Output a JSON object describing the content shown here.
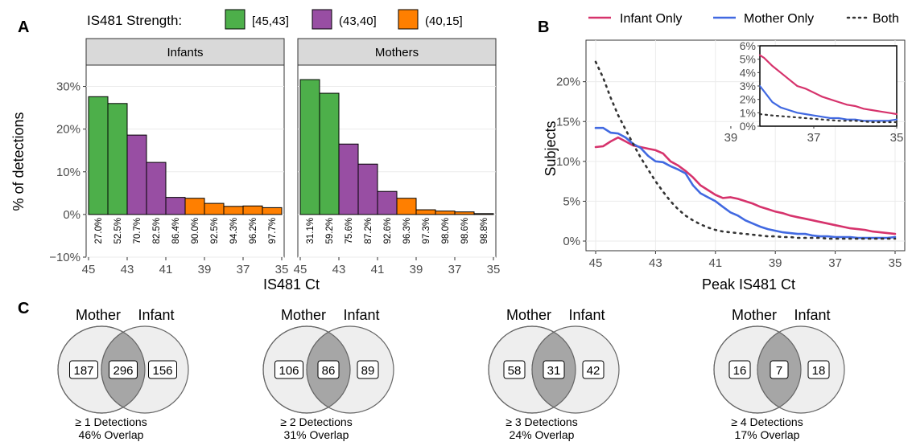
{
  "panel_labels": {
    "a": "A",
    "b": "B",
    "c": "C"
  },
  "colors": {
    "strength_high": "#4daf4a",
    "strength_mid": "#984ea3",
    "strength_low": "#ff7f00",
    "infant_only": "#d6336c",
    "mother_only": "#4169e1",
    "both": "#333333",
    "strip_fill": "#d9d9d9",
    "venn_outer": "#eeeeee",
    "venn_overlap": "#a6a6a6"
  },
  "chart_data": [
    {
      "type": "bar",
      "panel": "A",
      "legend_title": "IS481 Strength:",
      "legend_entries": [
        "[45,43]",
        "(43,40]",
        "(40,15]"
      ],
      "xlabel": "IS481 Ct",
      "ylabel": "% of detections",
      "xlim": [
        45,
        35
      ],
      "ylim": [
        -0.1,
        0.35
      ],
      "xticks": [
        "45",
        "43",
        "41",
        "39",
        "37",
        "35"
      ],
      "yticks": [
        "30%",
        "20%",
        "10%",
        "0%",
        "−10%"
      ],
      "ytick_values": [
        0.3,
        0.2,
        0.1,
        0.0,
        -0.1
      ],
      "facets": [
        {
          "title": "Infants",
          "bins": [
            {
              "x_left": 45,
              "x_right": 44,
              "value": 0.276,
              "group": 0,
              "cum_label": "27.0%"
            },
            {
              "x_left": 44,
              "x_right": 43,
              "value": 0.26,
              "group": 0,
              "cum_label": "52.5%"
            },
            {
              "x_left": 43,
              "x_right": 42,
              "value": 0.186,
              "group": 1,
              "cum_label": "70.7%"
            },
            {
              "x_left": 42,
              "x_right": 41,
              "value": 0.122,
              "group": 1,
              "cum_label": "82.5%"
            },
            {
              "x_left": 41,
              "x_right": 40,
              "value": 0.04,
              "group": 1,
              "cum_label": "86.4%"
            },
            {
              "x_left": 40,
              "x_right": 39,
              "value": 0.038,
              "group": 2,
              "cum_label": "90.0%"
            },
            {
              "x_left": 39,
              "x_right": 38,
              "value": 0.026,
              "group": 2,
              "cum_label": "92.5%"
            },
            {
              "x_left": 38,
              "x_right": 37,
              "value": 0.019,
              "group": 2,
              "cum_label": "94.3%"
            },
            {
              "x_left": 37,
              "x_right": 36,
              "value": 0.02,
              "group": 2,
              "cum_label": "96.2%"
            },
            {
              "x_left": 36,
              "x_right": 35,
              "value": 0.016,
              "group": 2,
              "cum_label": "97.7%"
            }
          ]
        },
        {
          "title": "Mothers",
          "bins": [
            {
              "x_left": 45,
              "x_right": 44,
              "value": 0.316,
              "group": 0,
              "cum_label": "31.1%"
            },
            {
              "x_left": 44,
              "x_right": 43,
              "value": 0.284,
              "group": 0,
              "cum_label": "59.2%"
            },
            {
              "x_left": 43,
              "x_right": 42,
              "value": 0.165,
              "group": 1,
              "cum_label": "75.6%"
            },
            {
              "x_left": 42,
              "x_right": 41,
              "value": 0.118,
              "group": 1,
              "cum_label": "87.2%"
            },
            {
              "x_left": 41,
              "x_right": 40,
              "value": 0.054,
              "group": 1,
              "cum_label": "92.6%"
            },
            {
              "x_left": 40,
              "x_right": 39,
              "value": 0.038,
              "group": 2,
              "cum_label": "96.3%"
            },
            {
              "x_left": 39,
              "x_right": 38,
              "value": 0.011,
              "group": 2,
              "cum_label": "97.3%"
            },
            {
              "x_left": 38,
              "x_right": 37,
              "value": 0.008,
              "group": 2,
              "cum_label": "98.0%"
            },
            {
              "x_left": 37,
              "x_right": 36,
              "value": 0.006,
              "group": 2,
              "cum_label": "98.6%"
            },
            {
              "x_left": 36,
              "x_right": 35,
              "value": 0.002,
              "group": 2,
              "cum_label": "98.8%"
            }
          ]
        }
      ]
    },
    {
      "type": "line",
      "panel": "B",
      "xlabel": "Peak IS481 Ct",
      "ylabel": "Subjects",
      "xlim": [
        45,
        35
      ],
      "ylim": [
        0,
        0.24
      ],
      "xticks": [
        "45",
        "43",
        "41",
        "39",
        "37",
        "35"
      ],
      "yticks": [
        "20%",
        "15%",
        "10%",
        "5%",
        "0%"
      ],
      "ytick_values": [
        0.2,
        0.15,
        0.1,
        0.05,
        0.0
      ],
      "series": [
        {
          "name": "Infant Only",
          "dash": "solid",
          "points": [
            [
              45,
              0.118
            ],
            [
              44.75,
              0.119
            ],
            [
              44.5,
              0.125
            ],
            [
              44.25,
              0.13
            ],
            [
              44,
              0.125
            ],
            [
              43.75,
              0.12
            ],
            [
              43.5,
              0.118
            ],
            [
              43.25,
              0.116
            ],
            [
              43,
              0.114
            ],
            [
              42.75,
              0.11
            ],
            [
              42.5,
              0.1
            ],
            [
              42.25,
              0.095
            ],
            [
              42,
              0.088
            ],
            [
              41.75,
              0.08
            ],
            [
              41.5,
              0.07
            ],
            [
              41.25,
              0.064
            ],
            [
              41,
              0.058
            ],
            [
              40.75,
              0.054
            ],
            [
              40.5,
              0.055
            ],
            [
              40.25,
              0.053
            ],
            [
              40,
              0.05
            ],
            [
              39.75,
              0.047
            ],
            [
              39.5,
              0.043
            ],
            [
              39.25,
              0.04
            ],
            [
              39,
              0.037
            ],
            [
              38.75,
              0.035
            ],
            [
              38.5,
              0.032
            ],
            [
              38.25,
              0.03
            ],
            [
              38,
              0.028
            ],
            [
              37.75,
              0.026
            ],
            [
              37.5,
              0.024
            ],
            [
              37.25,
              0.022
            ],
            [
              37,
              0.02
            ],
            [
              36.75,
              0.018
            ],
            [
              36.5,
              0.016
            ],
            [
              36.25,
              0.015
            ],
            [
              36,
              0.014
            ],
            [
              35.75,
              0.012
            ],
            [
              35.5,
              0.011
            ],
            [
              35.25,
              0.01
            ],
            [
              35,
              0.009
            ]
          ]
        },
        {
          "name": "Mother Only",
          "dash": "long",
          "points": [
            [
              45,
              0.142
            ],
            [
              44.75,
              0.142
            ],
            [
              44.5,
              0.136
            ],
            [
              44.25,
              0.135
            ],
            [
              44,
              0.13
            ],
            [
              43.75,
              0.122
            ],
            [
              43.5,
              0.117
            ],
            [
              43.25,
              0.107
            ],
            [
              43,
              0.1
            ],
            [
              42.75,
              0.099
            ],
            [
              42.5,
              0.094
            ],
            [
              42.25,
              0.09
            ],
            [
              42,
              0.085
            ],
            [
              41.75,
              0.07
            ],
            [
              41.5,
              0.06
            ],
            [
              41.25,
              0.055
            ],
            [
              41,
              0.05
            ],
            [
              40.75,
              0.043
            ],
            [
              40.5,
              0.036
            ],
            [
              40.25,
              0.032
            ],
            [
              40,
              0.026
            ],
            [
              39.75,
              0.022
            ],
            [
              39.5,
              0.018
            ],
            [
              39.25,
              0.015
            ],
            [
              39,
              0.013
            ],
            [
              38.75,
              0.011
            ],
            [
              38.5,
              0.01
            ],
            [
              38.25,
              0.009
            ],
            [
              38,
              0.009
            ],
            [
              37.75,
              0.007
            ],
            [
              37.5,
              0.006
            ],
            [
              37.25,
              0.006
            ],
            [
              37,
              0.005
            ],
            [
              36.75,
              0.005
            ],
            [
              36.5,
              0.005
            ],
            [
              36.25,
              0.004
            ],
            [
              36,
              0.004
            ],
            [
              35.75,
              0.004
            ],
            [
              35.5,
              0.004
            ],
            [
              35.25,
              0.004
            ],
            [
              35,
              0.005
            ]
          ]
        },
        {
          "name": "Both",
          "dash": "dotted",
          "points": [
            [
              45,
              0.225
            ],
            [
              44.75,
              0.205
            ],
            [
              44.5,
              0.18
            ],
            [
              44.25,
              0.158
            ],
            [
              44,
              0.14
            ],
            [
              43.75,
              0.122
            ],
            [
              43.5,
              0.105
            ],
            [
              43.25,
              0.09
            ],
            [
              43,
              0.075
            ],
            [
              42.75,
              0.062
            ],
            [
              42.5,
              0.05
            ],
            [
              42.25,
              0.04
            ],
            [
              42,
              0.032
            ],
            [
              41.75,
              0.026
            ],
            [
              41.5,
              0.021
            ],
            [
              41.25,
              0.017
            ],
            [
              41,
              0.014
            ],
            [
              40.75,
              0.012
            ],
            [
              40.5,
              0.011
            ],
            [
              40.25,
              0.01
            ],
            [
              40,
              0.009
            ],
            [
              39.75,
              0.008
            ],
            [
              39.5,
              0.007
            ],
            [
              39.25,
              0.006
            ],
            [
              39,
              0.006
            ],
            [
              38.75,
              0.005
            ],
            [
              38.5,
              0.005
            ],
            [
              38.25,
              0.004
            ],
            [
              38,
              0.004
            ],
            [
              37.75,
              0.004
            ],
            [
              37.5,
              0.004
            ],
            [
              37.25,
              0.003
            ],
            [
              37,
              0.003
            ],
            [
              36.75,
              0.003
            ],
            [
              36.5,
              0.003
            ],
            [
              36.25,
              0.003
            ],
            [
              36,
              0.003
            ],
            [
              35.75,
              0.003
            ],
            [
              35.5,
              0.003
            ],
            [
              35.25,
              0.003
            ],
            [
              35,
              0.003
            ]
          ]
        }
      ],
      "inset": {
        "xlim": [
          38.3,
          35
        ],
        "ylim": [
          0,
          0.06
        ],
        "xticks": [
          "39",
          "37",
          "35"
        ],
        "xtick_values": [
          39,
          37,
          35
        ],
        "yticks": [
          "6%",
          "5%",
          "4%",
          "3%",
          "2%",
          "1%",
          "0%"
        ],
        "ytick_values": [
          0.06,
          0.05,
          0.04,
          0.03,
          0.02,
          0.01,
          0.0
        ],
        "series": [
          {
            "name": "Infant Only",
            "points": [
              [
                38.3,
                0.053
              ],
              [
                38.2,
                0.051
              ],
              [
                38,
                0.045
              ],
              [
                37.8,
                0.04
              ],
              [
                37.6,
                0.035
              ],
              [
                37.4,
                0.03
              ],
              [
                37.2,
                0.028
              ],
              [
                37,
                0.025
              ],
              [
                36.8,
                0.022
              ],
              [
                36.6,
                0.02
              ],
              [
                36.4,
                0.018
              ],
              [
                36.2,
                0.016
              ],
              [
                36,
                0.015
              ],
              [
                35.8,
                0.013
              ],
              [
                35.6,
                0.012
              ],
              [
                35.4,
                0.011
              ],
              [
                35.2,
                0.01
              ],
              [
                35,
                0.009
              ]
            ]
          },
          {
            "name": "Mother Only",
            "points": [
              [
                38.3,
                0.03
              ],
              [
                38.2,
                0.026
              ],
              [
                38,
                0.018
              ],
              [
                37.8,
                0.014
              ],
              [
                37.6,
                0.012
              ],
              [
                37.4,
                0.01
              ],
              [
                37.2,
                0.009
              ],
              [
                37,
                0.008
              ],
              [
                36.8,
                0.007
              ],
              [
                36.6,
                0.006
              ],
              [
                36.4,
                0.006
              ],
              [
                36.2,
                0.005
              ],
              [
                36,
                0.005
              ],
              [
                35.8,
                0.004
              ],
              [
                35.6,
                0.004
              ],
              [
                35.4,
                0.004
              ],
              [
                35.2,
                0.004
              ],
              [
                35,
                0.005
              ]
            ]
          },
          {
            "name": "Both",
            "points": [
              [
                38.3,
                0.009
              ],
              [
                38,
                0.008
              ],
              [
                37.6,
                0.007
              ],
              [
                37.2,
                0.006
              ],
              [
                36.8,
                0.005
              ],
              [
                36.4,
                0.004
              ],
              [
                36,
                0.004
              ],
              [
                35.6,
                0.003
              ],
              [
                35.2,
                0.003
              ],
              [
                35,
                0.003
              ]
            ]
          }
        ]
      }
    },
    {
      "type": "venn",
      "panel": "C",
      "set_labels": [
        "Mother",
        "Infant"
      ],
      "diagrams": [
        {
          "mother_only": "187",
          "both": "296",
          "infant_only": "156",
          "caption_line1": "≥ 1 Detections",
          "caption_line2": "46%  Overlap"
        },
        {
          "mother_only": "106",
          "both": "86",
          "infant_only": "89",
          "caption_line1": "≥ 2 Detections",
          "caption_line2": "31%  Overlap"
        },
        {
          "mother_only": "58",
          "both": "31",
          "infant_only": "42",
          "caption_line1": "≥ 3 Detections",
          "caption_line2": "24%  Overlap"
        },
        {
          "mother_only": "16",
          "both": "7",
          "infant_only": "18",
          "caption_line1": "≥ 4 Detections",
          "caption_line2": "17%  Overlap"
        }
      ]
    }
  ]
}
